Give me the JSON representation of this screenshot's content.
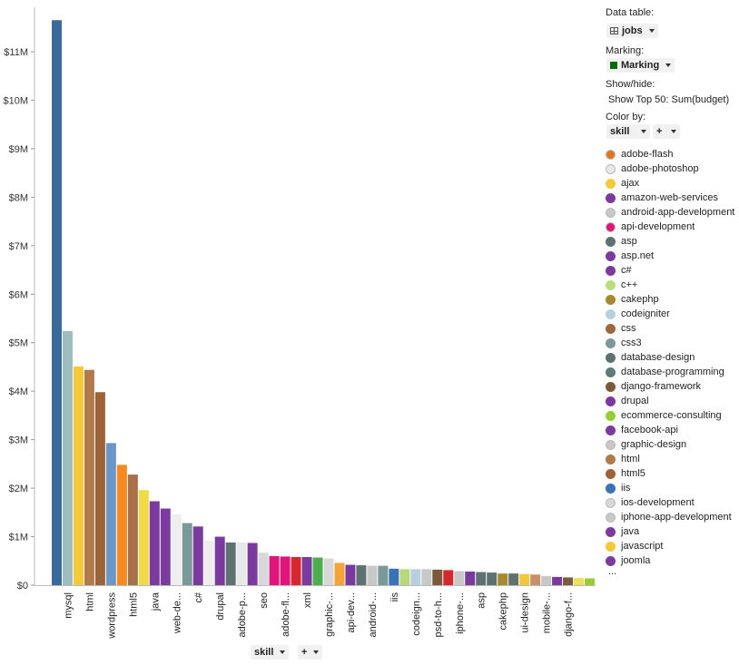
{
  "chart_data": {
    "type": "bar",
    "x_axis_column": "skill",
    "y_axis_measure": "Sum(budget)",
    "ylim": [
      0,
      11800000
    ],
    "y_ticks": [
      {
        "value": 0,
        "label": "$0"
      },
      {
        "value": 1000000,
        "label": "$1M"
      },
      {
        "value": 2000000,
        "label": "$2M"
      },
      {
        "value": 3000000,
        "label": "$3M"
      },
      {
        "value": 4000000,
        "label": "$4M"
      },
      {
        "value": 5000000,
        "label": "$5M"
      },
      {
        "value": 6000000,
        "label": "$6M"
      },
      {
        "value": 7000000,
        "label": "$7M"
      },
      {
        "value": 8000000,
        "label": "$8M"
      },
      {
        "value": 9000000,
        "label": "$9M"
      },
      {
        "value": 10000000,
        "label": "$10M"
      },
      {
        "value": 11000000,
        "label": "$11M"
      }
    ],
    "bars": [
      {
        "value": 11650000,
        "color": "#3a6a9a",
        "label": ""
      },
      {
        "value": 5240000,
        "color": "#9ebebe",
        "label": "mysql"
      },
      {
        "value": 4510000,
        "color": "#f3c93a",
        "label": ""
      },
      {
        "value": 4440000,
        "color": "#b07a4a",
        "label": "html"
      },
      {
        "value": 3980000,
        "color": "#9c6238",
        "label": ""
      },
      {
        "value": 2930000,
        "color": "#6a96c8",
        "label": "wordpress"
      },
      {
        "value": 2480000,
        "color": "#f68a1e",
        "label": ""
      },
      {
        "value": 2280000,
        "color": "#a8704a",
        "label": "html5"
      },
      {
        "value": 1960000,
        "color": "#f0da45",
        "label": ""
      },
      {
        "value": 1730000,
        "color": "#7a3a9e",
        "label": "java"
      },
      {
        "value": 1580000,
        "color": "#7a3a9e",
        "label": ""
      },
      {
        "value": 1460000,
        "color": "#eeeeee",
        "label": "web-de..."
      },
      {
        "value": 1280000,
        "color": "#7a9a9a",
        "label": ""
      },
      {
        "value": 1210000,
        "color": "#7a3a9e",
        "label": "c#"
      },
      {
        "value": 920000,
        "color": "#eeeeee",
        "label": ""
      },
      {
        "value": 1000000,
        "color": "#7a3a9e",
        "label": "drupal"
      },
      {
        "value": 880000,
        "color": "#5e7272",
        "label": ""
      },
      {
        "value": 880000,
        "color": "#e8e8e8",
        "label": "adobe-p..."
      },
      {
        "value": 870000,
        "color": "#7a3a9e",
        "label": ""
      },
      {
        "value": 670000,
        "color": "#d8d8d8",
        "label": "seo"
      },
      {
        "value": 600000,
        "color": "#e0147a",
        "label": ""
      },
      {
        "value": 590000,
        "color": "#e0147a",
        "label": "adobe-fl..."
      },
      {
        "value": 580000,
        "color": "#d8262e",
        "label": ""
      },
      {
        "value": 580000,
        "color": "#7a3a9e",
        "label": "xml"
      },
      {
        "value": 570000,
        "color": "#4cae4c",
        "label": ""
      },
      {
        "value": 550000,
        "color": "#d8d8d8",
        "label": "graphic-..."
      },
      {
        "value": 460000,
        "color": "#f5a43a",
        "label": ""
      },
      {
        "value": 420000,
        "color": "#7a3a9e",
        "label": "api-dev..."
      },
      {
        "value": 410000,
        "color": "#5e7272",
        "label": ""
      },
      {
        "value": 400000,
        "color": "#c8c8c8",
        "label": "android-..."
      },
      {
        "value": 400000,
        "color": "#7a9a9a",
        "label": ""
      },
      {
        "value": 340000,
        "color": "#3a72b8",
        "label": "iis"
      },
      {
        "value": 330000,
        "color": "#b8d878",
        "label": ""
      },
      {
        "value": 330000,
        "color": "#b8cfe0",
        "label": "codeign..."
      },
      {
        "value": 330000,
        "color": "#c8c8c8",
        "label": ""
      },
      {
        "value": 320000,
        "color": "#7a5a3a",
        "label": "psd-to-h..."
      },
      {
        "value": 310000,
        "color": "#d8262e",
        "label": ""
      },
      {
        "value": 290000,
        "color": "#c8c8c8",
        "label": "iphone-..."
      },
      {
        "value": 280000,
        "color": "#7a3a9e",
        "label": ""
      },
      {
        "value": 270000,
        "color": "#5e7272",
        "label": "asp"
      },
      {
        "value": 260000,
        "color": "#5e7272",
        "label": ""
      },
      {
        "value": 240000,
        "color": "#a88a2e",
        "label": "cakephp"
      },
      {
        "value": 240000,
        "color": "#5e7272",
        "label": ""
      },
      {
        "value": 230000,
        "color": "#f3c93a",
        "label": "ui-design"
      },
      {
        "value": 220000,
        "color": "#c8906a",
        "label": ""
      },
      {
        "value": 190000,
        "color": "#c8c8c8",
        "label": "mobile-..."
      },
      {
        "value": 170000,
        "color": "#7a3a9e",
        "label": ""
      },
      {
        "value": 160000,
        "color": "#7a5a3a",
        "label": "django-f..."
      },
      {
        "value": 150000,
        "color": "#f0e058",
        "label": ""
      },
      {
        "value": 140000,
        "color": "#9acd32",
        "label": ""
      }
    ]
  },
  "panel": {
    "data_table_label": "Data table:",
    "data_table_value": "jobs",
    "marking_label": "Marking:",
    "marking_value": "Marking",
    "marking_color": "#0a6a0a",
    "showhide_label": "Show/hide:",
    "showhide_value": "Show Top 50: Sum(budget)",
    "colorby_label": "Color by:",
    "colorby_value": "skill",
    "plus_label": "+",
    "more": "...",
    "legend": [
      {
        "name": "adobe-flash",
        "color": "#e0761a"
      },
      {
        "name": "adobe-photoshop",
        "color": "#e8e8e8"
      },
      {
        "name": "ajax",
        "color": "#f3c93a"
      },
      {
        "name": "amazon-web-services",
        "color": "#7a3a9e"
      },
      {
        "name": "android-app-development",
        "color": "#c8c8c8"
      },
      {
        "name": "api-development",
        "color": "#e0147a"
      },
      {
        "name": "asp",
        "color": "#5e7272"
      },
      {
        "name": "asp.net",
        "color": "#7a3a9e"
      },
      {
        "name": "c#",
        "color": "#7a3a9e"
      },
      {
        "name": "c++",
        "color": "#b8e07a"
      },
      {
        "name": "cakephp",
        "color": "#a88a2e"
      },
      {
        "name": "codeigniter",
        "color": "#b8cfe0"
      },
      {
        "name": "css",
        "color": "#a0683a"
      },
      {
        "name": "css3",
        "color": "#7a9a9a"
      },
      {
        "name": "database-design",
        "color": "#5e7272"
      },
      {
        "name": "database-programming",
        "color": "#5e7a7a"
      },
      {
        "name": "django-framework",
        "color": "#7a5a3a"
      },
      {
        "name": "drupal",
        "color": "#7a3a9e"
      },
      {
        "name": "ecommerce-consulting",
        "color": "#9acd32"
      },
      {
        "name": "facebook-api",
        "color": "#7a3a9e"
      },
      {
        "name": "graphic-design",
        "color": "#c8c8c8"
      },
      {
        "name": "html",
        "color": "#b07a4a"
      },
      {
        "name": "html5",
        "color": "#9c6238"
      },
      {
        "name": "iis",
        "color": "#3a72b8"
      },
      {
        "name": "ios-development",
        "color": "#d8d8d8"
      },
      {
        "name": "iphone-app-development",
        "color": "#c8c8c8"
      },
      {
        "name": "java",
        "color": "#7a3a9e"
      },
      {
        "name": "javascript",
        "color": "#f3c93a"
      },
      {
        "name": "joomla",
        "color": "#7a3a9e"
      }
    ]
  }
}
